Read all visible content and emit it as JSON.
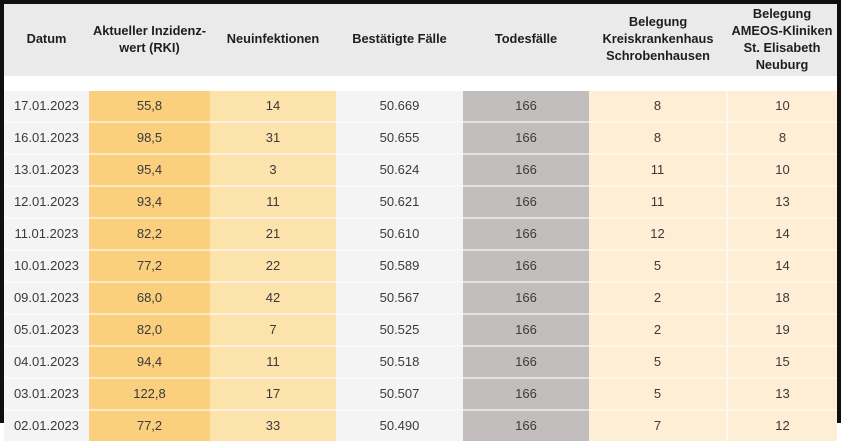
{
  "chart_data": {
    "type": "table",
    "columns": [
      {
        "key": "datum",
        "label": "Datum"
      },
      {
        "key": "inzidenzwert",
        "label": "Aktueller Inzidenz-\nwert (RKI)"
      },
      {
        "key": "neuinfektionen",
        "label": "Neuinfektionen"
      },
      {
        "key": "bestaetigte_faelle",
        "label": "Bestätigte Fälle"
      },
      {
        "key": "todesfaelle",
        "label": "Todesfälle"
      },
      {
        "key": "belegung_kreiskrankenhaus",
        "label": "Belegung\nKreiskrankenhaus\nSchrobenhausen"
      },
      {
        "key": "belegung_ameos",
        "label": "Belegung\nAMEOS-Kliniken\nSt. Elisabeth\nNeuburg"
      }
    ],
    "rows": [
      [
        "17.01.2023",
        "55,8",
        "14",
        "50.669",
        "166",
        "8",
        "10"
      ],
      [
        "16.01.2023",
        "98,5",
        "31",
        "50.655",
        "166",
        "8",
        "8"
      ],
      [
        "13.01.2023",
        "95,4",
        "3",
        "50.624",
        "166",
        "11",
        "10"
      ],
      [
        "12.01.2023",
        "93,4",
        "11",
        "50.621",
        "166",
        "11",
        "13"
      ],
      [
        "11.01.2023",
        "82,2",
        "21",
        "50.610",
        "166",
        "12",
        "14"
      ],
      [
        "10.01.2023",
        "77,2",
        "22",
        "50.589",
        "166",
        "5",
        "14"
      ],
      [
        "09.01.2023",
        "68,0",
        "42",
        "50.567",
        "166",
        "2",
        "18"
      ],
      [
        "05.01.2023",
        "82,0",
        "7",
        "50.525",
        "166",
        "2",
        "19"
      ],
      [
        "04.01.2023",
        "94,4",
        "11",
        "50.518",
        "166",
        "5",
        "15"
      ],
      [
        "03.01.2023",
        "122,8",
        "17",
        "50.507",
        "166",
        "5",
        "13"
      ],
      [
        "02.01.2023",
        "77,2",
        "33",
        "50.490",
        "166",
        "7",
        "12"
      ]
    ]
  },
  "colors": {
    "header_bg": "#eaeaea",
    "header_text": "#1e1e1e",
    "body_text": "#3a3a3a",
    "neutral_col_bg": "#f4f4f4",
    "incidence_col_bg": "#fad07e",
    "newinfections_col_bg": "#fce2ab",
    "deaths_col_bg": "#c2bebe",
    "occupancy_col_bg": "#fdeed5",
    "frame_border": "#0f0f0f"
  }
}
